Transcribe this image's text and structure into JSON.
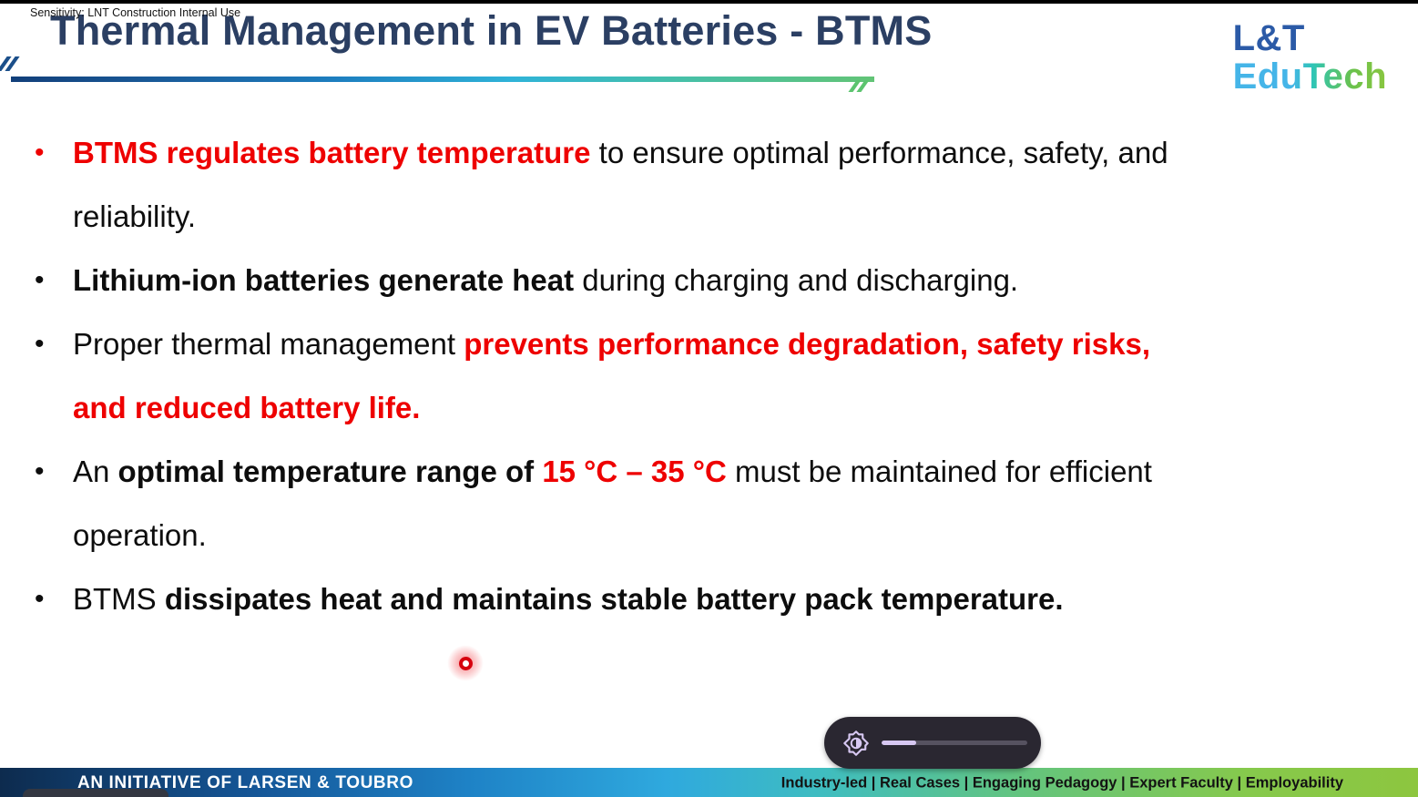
{
  "header": {
    "title": "Thermal Management in EV Batteries - BTMS",
    "logo": {
      "line1": "L&T",
      "line2": "EduTech"
    }
  },
  "colors": {
    "title_navy": "#2b3f63",
    "accent_red": "#ee0000",
    "body_black": "#0d0d0d",
    "logo_blue": "#2b5aa7",
    "logo_gradient": [
      "#45b5e8",
      "#2fc5b5",
      "#8ac640"
    ],
    "underline_gradient": [
      "#123f7a",
      "#2fb3d8",
      "#62c476"
    ],
    "footer_gradient": [
      "#0d2b4e",
      "#2fa9de",
      "#8dc63f"
    ],
    "pill_background": "#2a2731",
    "pill_accent": "#d7c8f2",
    "slider_track": "#565260",
    "laser_red": "#d6020e"
  },
  "bullets": [
    {
      "marker_color": "#ee0000",
      "segments": [
        {
          "text": "BTMS regulates battery temperature",
          "style": "rb"
        },
        {
          "text": " to ensure optimal performance, safety, and",
          "style": "n"
        },
        {
          "break": true
        },
        {
          "text": "reliability.",
          "style": "n"
        }
      ]
    },
    {
      "marker_color": "#0d0d0d",
      "segments": [
        {
          "text": "Lithium-ion batteries generate heat",
          "style": "b"
        },
        {
          "text": " during charging and discharging.",
          "style": "n"
        }
      ]
    },
    {
      "marker_color": "#0d0d0d",
      "segments": [
        {
          "text": "Proper thermal management ",
          "style": "n"
        },
        {
          "text": "prevents performance degradation, safety risks,",
          "style": "rb"
        },
        {
          "break": true
        },
        {
          "text": "and reduced battery life.",
          "style": "rb"
        }
      ]
    },
    {
      "marker_color": "#0d0d0d",
      "segments": [
        {
          "text": "An ",
          "style": "n"
        },
        {
          "text": "optimal temperature range of ",
          "style": "b"
        },
        {
          "text": "15 °C – 35 °C",
          "style": "rb"
        },
        {
          "text": " must be maintained for efficient",
          "style": "n"
        },
        {
          "break": true
        },
        {
          "text": "operation.",
          "style": "n"
        }
      ]
    },
    {
      "marker_color": "#0d0d0d",
      "segments": [
        {
          "text": "BTMS ",
          "style": "n"
        },
        {
          "text": "dissipates heat and maintains stable battery pack temperature.",
          "style": "b"
        }
      ]
    }
  ],
  "media_control": {
    "icon": "brightness-icon",
    "slider_fill_percent": 24
  },
  "laser_pointer": {
    "visible": true
  },
  "footer": {
    "left_text": "AN INITIATIVE OF LARSEN & TOUBRO",
    "right_text": "Industry-led | Real Cases | Engaging Pedagogy | Expert Faculty | Employability",
    "sensitivity_text": "Sensitivity: LNT Construction Internal Use"
  }
}
